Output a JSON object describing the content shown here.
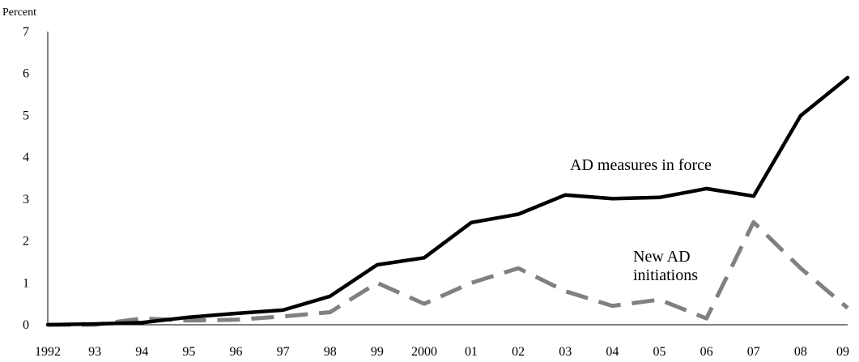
{
  "chart_data": {
    "type": "line",
    "ylabel": "Percent",
    "ylim": [
      0,
      7
    ],
    "yticks": [
      0,
      1,
      2,
      3,
      4,
      5,
      6,
      7
    ],
    "categories": [
      "1992",
      "93",
      "94",
      "95",
      "96",
      "97",
      "98",
      "99",
      "2000",
      "01",
      "02",
      "03",
      "04",
      "05",
      "06",
      "07",
      "08",
      "09"
    ],
    "grid": false,
    "series": [
      {
        "name": "AD measures in force",
        "style": "solid",
        "color": "#000000",
        "values": [
          0.0,
          0.02,
          0.05,
          0.18,
          0.27,
          0.35,
          0.68,
          1.43,
          1.6,
          2.44,
          2.64,
          3.1,
          3.01,
          3.04,
          3.25,
          3.07,
          4.99,
          5.9
        ]
      },
      {
        "name": "New AD initiations",
        "style": "dashed",
        "color": "#808080",
        "values": [
          0.0,
          0.0,
          0.15,
          0.1,
          0.12,
          0.2,
          0.3,
          1.0,
          0.5,
          1.0,
          1.35,
          0.8,
          0.45,
          0.6,
          0.15,
          2.45,
          1.35,
          0.4
        ]
      }
    ],
    "annotations": [
      {
        "text": "AD measures in force",
        "series": 0
      },
      {
        "text": "New AD",
        "series": 1
      },
      {
        "text": "initiations",
        "series": 1
      }
    ]
  }
}
